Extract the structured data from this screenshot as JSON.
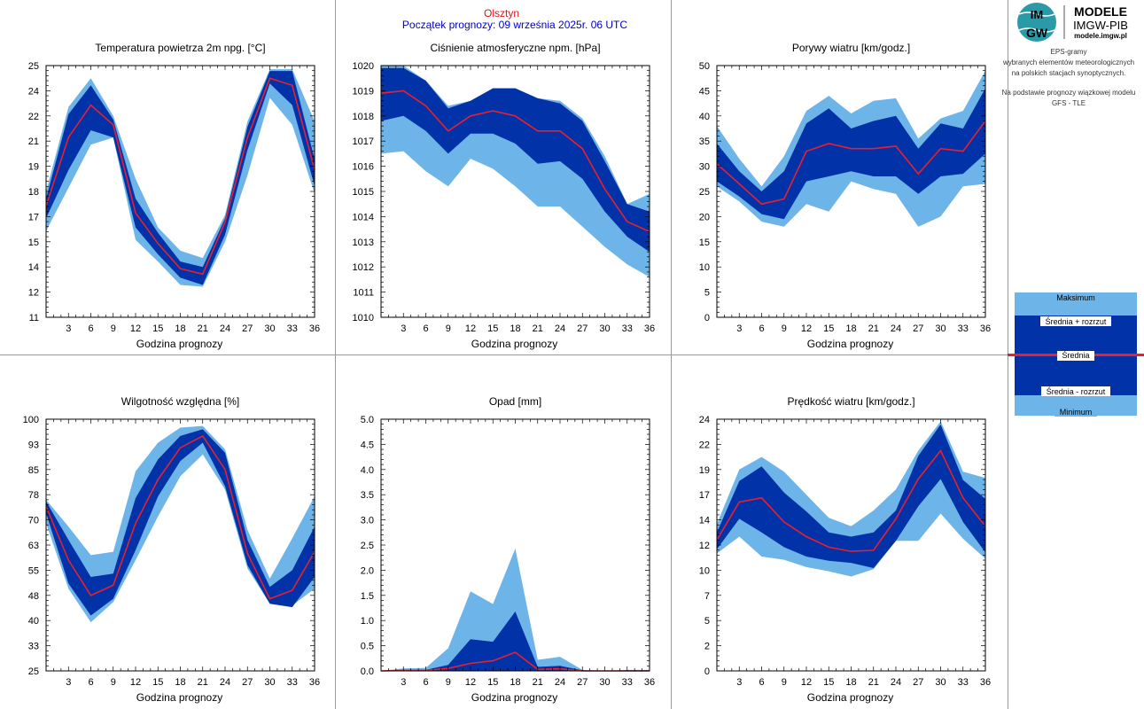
{
  "header": {
    "city": "Olsztyn",
    "forecast_start": "Początek prognozy: 09 września 2025r. 06 UTC"
  },
  "logo": {
    "name_line1": "MODELE",
    "name_line2": "IMGW-PIB",
    "url": "modele.imgw.pl"
  },
  "info_lines": [
    "EPS-gramy",
    "wybranych elementów meteorologicznych",
    "na polskich stacjach  synoptycznych.",
    "",
    "Na podstawie prognozy wiązkowej modelu",
    "GFS - TLE"
  ],
  "legend": {
    "max": "Maksimum",
    "mean_plus": "Średnia + rozrzut",
    "mean": "Średnia",
    "mean_minus": "Średnia - rozrzut",
    "min": "Minimum",
    "colors": {
      "outer": "#6db4e8",
      "inner": "#0232a8",
      "mean": "#e8202e"
    }
  },
  "chart_data": [
    {
      "type": "area",
      "title": "Temperatura powietrza 2m npg. [°C]",
      "xlabel": "Godzina prognozy",
      "x": [
        0,
        3,
        6,
        9,
        12,
        15,
        18,
        21,
        24,
        27,
        30,
        33,
        36
      ],
      "xticks": [
        "3",
        "6",
        "9",
        "12",
        "15",
        "18",
        "21",
        "24",
        "27",
        "30",
        "33",
        "36"
      ],
      "ylim": [
        11,
        25
      ],
      "yticks": [
        "11",
        "12",
        "14",
        "15",
        "17",
        "18",
        "19",
        "21",
        "22",
        "24",
        "25"
      ],
      "series": [
        {
          "name": "Maksimum",
          "values": [
            18.0,
            22.7,
            24.3,
            22.2,
            18.7,
            16.0,
            14.7,
            14.3,
            16.7,
            21.9,
            24.8,
            24.8,
            21.9
          ]
        },
        {
          "name": "Średnia + rozrzut",
          "values": [
            17.6,
            22.3,
            23.9,
            22.0,
            17.6,
            15.7,
            14.1,
            13.8,
            16.5,
            21.6,
            24.7,
            24.7,
            19.8
          ]
        },
        {
          "name": "Średnia",
          "values": [
            17.2,
            21.0,
            22.8,
            21.7,
            16.8,
            15.1,
            13.7,
            13.4,
            16.3,
            21.0,
            24.3,
            23.9,
            19.2
          ]
        },
        {
          "name": "Średnia - rozrzut",
          "values": [
            16.5,
            19.2,
            21.4,
            21.0,
            16.0,
            14.5,
            13.2,
            12.8,
            15.6,
            20.3,
            24.0,
            22.8,
            18.3
          ]
        },
        {
          "name": "Minimum",
          "values": [
            15.8,
            18.2,
            20.6,
            21.0,
            15.3,
            14.1,
            12.8,
            12.7,
            15.2,
            18.9,
            23.2,
            21.7,
            17.9
          ]
        }
      ]
    },
    {
      "type": "area",
      "title": "Ciśnienie atmosferyczne npm. [hPa]",
      "xlabel": "Godzina prognozy",
      "x": [
        0,
        3,
        6,
        9,
        12,
        15,
        18,
        21,
        24,
        27,
        30,
        33,
        36
      ],
      "xticks": [
        "3",
        "6",
        "9",
        "12",
        "15",
        "18",
        "21",
        "24",
        "27",
        "30",
        "33",
        "36"
      ],
      "ylim": [
        1010,
        1020
      ],
      "yticks": [
        "1010",
        "1011",
        "1012",
        "1013",
        "1014",
        "1015",
        "1016",
        "1017",
        "1018",
        "1019",
        "1020"
      ],
      "series": [
        {
          "name": "Maksimum",
          "values": [
            1020.0,
            1020.0,
            1019.4,
            1018.4,
            1018.6,
            1019.1,
            1019.1,
            1018.7,
            1018.6,
            1017.9,
            1016.4,
            1014.5,
            1014.9
          ]
        },
        {
          "name": "Średnia + rozrzut",
          "values": [
            1019.9,
            1019.9,
            1019.4,
            1018.3,
            1018.6,
            1019.1,
            1019.1,
            1018.7,
            1018.5,
            1017.8,
            1016.2,
            1014.5,
            1014.2
          ]
        },
        {
          "name": "Średnia",
          "values": [
            1018.9,
            1019.0,
            1018.4,
            1017.4,
            1018.0,
            1018.2,
            1018.0,
            1017.4,
            1017.4,
            1016.7,
            1015.1,
            1013.8,
            1013.4
          ]
        },
        {
          "name": "Średnia - rozrzut",
          "values": [
            1017.8,
            1018.0,
            1017.4,
            1016.5,
            1017.3,
            1017.3,
            1016.9,
            1016.1,
            1016.2,
            1015.5,
            1014.2,
            1013.2,
            1012.6
          ]
        },
        {
          "name": "Minimum",
          "values": [
            1016.5,
            1016.6,
            1015.8,
            1015.2,
            1016.3,
            1015.9,
            1015.2,
            1014.4,
            1014.4,
            1013.6,
            1012.8,
            1012.1,
            1011.6
          ]
        }
      ]
    },
    {
      "type": "area",
      "title": "Porywy wiatru [km/godz.]",
      "xlabel": "Godzina prognozy",
      "x": [
        0,
        3,
        6,
        9,
        12,
        15,
        18,
        21,
        24,
        27,
        30,
        33,
        36
      ],
      "xticks": [
        "3",
        "6",
        "9",
        "12",
        "15",
        "18",
        "21",
        "24",
        "27",
        "30",
        "33",
        "36"
      ],
      "ylim": [
        0,
        50
      ],
      "yticks": [
        "0",
        "5",
        "10",
        "15",
        "20",
        "25",
        "30",
        "35",
        "40",
        "45",
        "50"
      ],
      "series": [
        {
          "name": "Maksimum",
          "values": [
            38.0,
            31.5,
            26.0,
            32.0,
            41.0,
            44.0,
            40.5,
            43.0,
            43.5,
            35.5,
            39.5,
            41.0,
            49.0
          ]
        },
        {
          "name": "Średnia + rozrzut",
          "values": [
            34.5,
            29.0,
            25.0,
            29.0,
            38.5,
            41.5,
            37.5,
            39.0,
            40.0,
            33.5,
            38.5,
            37.5,
            45.5
          ]
        },
        {
          "name": "Średnia",
          "values": [
            30.5,
            26.5,
            22.5,
            23.5,
            33.0,
            34.5,
            33.5,
            33.5,
            34.0,
            28.5,
            33.5,
            33.0,
            39.0
          ]
        },
        {
          "name": "Średnia - rozrzut",
          "values": [
            27.0,
            24.0,
            20.5,
            19.5,
            27.0,
            28.0,
            29.0,
            28.0,
            28.0,
            24.5,
            28.0,
            28.5,
            32.5
          ]
        },
        {
          "name": "Minimum",
          "values": [
            26.0,
            23.0,
            19.0,
            18.0,
            22.5,
            21.0,
            27.0,
            25.5,
            24.5,
            18.0,
            20.0,
            26.0,
            26.5
          ]
        }
      ]
    },
    {
      "type": "area",
      "title": "Wilgotność względna [%]",
      "xlabel": "Godzina prognozy",
      "x": [
        0,
        3,
        6,
        9,
        12,
        15,
        18,
        21,
        24,
        27,
        30,
        33,
        36
      ],
      "xticks": [
        "3",
        "6",
        "9",
        "12",
        "15",
        "18",
        "21",
        "24",
        "27",
        "30",
        "33",
        "36"
      ],
      "ylim": [
        25,
        100
      ],
      "yticks": [
        "25",
        "33",
        "40",
        "48",
        "55",
        "63",
        "70",
        "78",
        "85",
        "93",
        "100"
      ],
      "series": [
        {
          "name": "Maksimum",
          "values": [
            76.0,
            68.0,
            59.5,
            60.5,
            84.5,
            93.0,
            97.5,
            98.0,
            91.0,
            67.0,
            52.5,
            64.5,
            77.0
          ]
        },
        {
          "name": "Średnia + rozrzut",
          "values": [
            75.5,
            64.0,
            53.0,
            54.0,
            76.5,
            88.0,
            95.0,
            97.0,
            90.0,
            64.0,
            50.0,
            55.0,
            68.0
          ]
        },
        {
          "name": "Średnia",
          "values": [
            74.0,
            58.0,
            47.5,
            50.5,
            69.0,
            82.0,
            91.5,
            95.0,
            85.0,
            60.0,
            46.5,
            49.0,
            60.5
          ]
        },
        {
          "name": "Średnia - rozrzut",
          "values": [
            72.0,
            51.0,
            41.5,
            46.5,
            61.0,
            77.0,
            87.5,
            93.0,
            80.0,
            56.5,
            45.0,
            44.0,
            53.0
          ]
        },
        {
          "name": "Minimum",
          "values": [
            69.0,
            49.5,
            39.5,
            45.5,
            58.0,
            71.0,
            83.0,
            89.5,
            79.0,
            55.5,
            45.0,
            44.5,
            49.5
          ]
        }
      ]
    },
    {
      "type": "area",
      "title": "Opad [mm]",
      "xlabel": "Godzina prognozy",
      "x": [
        0,
        3,
        6,
        9,
        12,
        15,
        18,
        21,
        24,
        27,
        30,
        33,
        36
      ],
      "xticks": [
        "3",
        "6",
        "9",
        "12",
        "15",
        "18",
        "21",
        "24",
        "27",
        "30",
        "33",
        "36"
      ],
      "ylim": [
        0,
        5
      ],
      "yticks": [
        "0.0",
        "0.5",
        "1.0",
        "1.5",
        "2.0",
        "2.5",
        "3.0",
        "3.5",
        "4.0",
        "4.5",
        "5.0"
      ],
      "series": [
        {
          "name": "Maksimum",
          "values": [
            0.0,
            0.05,
            0.06,
            0.45,
            1.58,
            1.33,
            2.43,
            0.22,
            0.28,
            0.02,
            0.0,
            0.02,
            0.02
          ]
        },
        {
          "name": "Średnia + rozrzut",
          "values": [
            0.0,
            0.02,
            0.02,
            0.12,
            0.63,
            0.58,
            1.18,
            0.08,
            0.1,
            0.01,
            0.0,
            0.01,
            0.01
          ]
        },
        {
          "name": "Średnia",
          "values": [
            0.0,
            0.01,
            0.01,
            0.05,
            0.15,
            0.2,
            0.37,
            0.03,
            0.04,
            0.0,
            0.0,
            0.0,
            0.0
          ]
        },
        {
          "name": "Średnia - rozrzut",
          "values": [
            0.0,
            0.0,
            0.0,
            0.0,
            0.0,
            0.0,
            0.0,
            0.0,
            0.0,
            0.0,
            0.0,
            0.0,
            0.0
          ]
        },
        {
          "name": "Minimum",
          "values": [
            0.0,
            0.0,
            0.0,
            0.0,
            0.0,
            0.0,
            0.0,
            0.0,
            0.0,
            0.0,
            0.0,
            0.0,
            0.0
          ]
        }
      ]
    },
    {
      "type": "area",
      "title": "Prędkość wiatru [km/godz.]",
      "xlabel": "Godzina prognozy",
      "x": [
        0,
        3,
        6,
        9,
        12,
        15,
        18,
        21,
        24,
        27,
        30,
        33,
        36
      ],
      "xticks": [
        "3",
        "6",
        "9",
        "12",
        "15",
        "18",
        "21",
        "24",
        "27",
        "30",
        "33",
        "36"
      ],
      "ylim": [
        0,
        24
      ],
      "yticks": [
        "0",
        "2",
        "5",
        "7",
        "10",
        "12",
        "14",
        "17",
        "19",
        "22",
        "24"
      ],
      "series": [
        {
          "name": "Maksimum",
          "values": [
            14.0,
            19.2,
            20.4,
            19.0,
            16.8,
            14.6,
            13.8,
            15.3,
            17.3,
            21.0,
            23.8,
            19.0,
            18.4
          ]
        },
        {
          "name": "Średnia + rozrzut",
          "values": [
            13.2,
            18.1,
            19.5,
            17.0,
            15.2,
            13.2,
            12.8,
            13.2,
            15.3,
            20.5,
            23.5,
            18.2,
            16.4
          ]
        },
        {
          "name": "Średnia",
          "values": [
            12.5,
            16.1,
            16.5,
            14.2,
            12.8,
            11.8,
            11.4,
            11.5,
            14.5,
            18.3,
            21.0,
            16.5,
            13.8
          ]
        },
        {
          "name": "Średnia - rozrzut",
          "values": [
            11.6,
            14.5,
            13.2,
            11.8,
            10.9,
            10.5,
            10.3,
            9.8,
            12.4,
            15.7,
            18.3,
            14.2,
            11.3
          ]
        },
        {
          "name": "Minimum",
          "values": [
            11.2,
            12.8,
            10.9,
            10.6,
            9.9,
            9.5,
            9.0,
            9.7,
            12.4,
            12.4,
            15.0,
            12.6,
            10.7
          ]
        }
      ]
    }
  ]
}
